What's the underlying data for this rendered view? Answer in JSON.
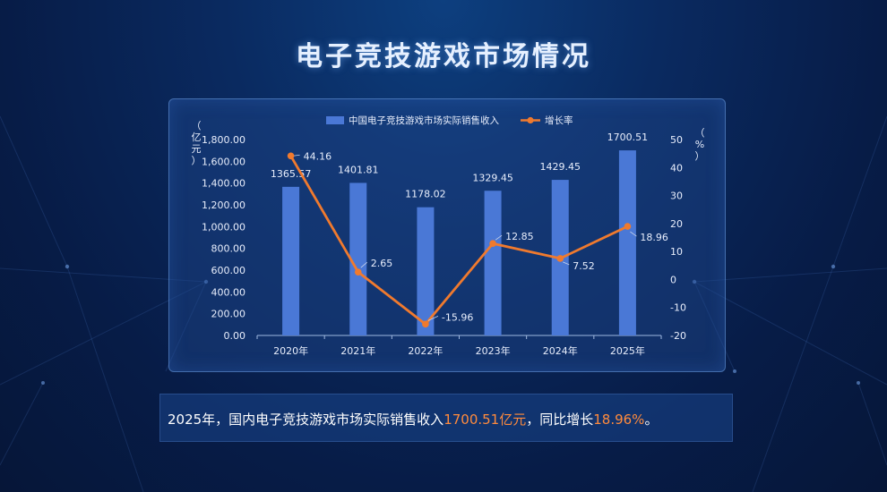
{
  "page": {
    "title": "电子竞技游戏市场情况"
  },
  "summary": {
    "prefix": "2025年，国内电子竞技游戏市场实际销售收入",
    "revenue": "1700.51亿元",
    "middle": "，同比增长",
    "growth": "18.96%",
    "suffix": "。"
  },
  "chart_data": {
    "type": "bar",
    "categories": [
      "2020年",
      "2021年",
      "2022年",
      "2023年",
      "2024年",
      "2025年"
    ],
    "series": [
      {
        "name": "中国电子竞技游戏市场实际销售收入",
        "type": "bar",
        "axis": "left",
        "values": [
          1365.57,
          1401.81,
          1178.02,
          1329.45,
          1429.45,
          1700.51
        ],
        "labels": [
          "1365.57",
          "1401.81",
          "1178.02",
          "1329.45",
          "1429.45",
          "1700.51"
        ],
        "color": "#4a78d6"
      },
      {
        "name": "增长率",
        "type": "line",
        "axis": "right",
        "values": [
          44.16,
          2.65,
          -15.96,
          12.85,
          7.52,
          18.96
        ],
        "labels": [
          "44.16",
          "2.65",
          "-15.96",
          "12.85",
          "7.52",
          "18.96"
        ],
        "color": "#f07a2e"
      }
    ],
    "ylabel_left": "（亿元）",
    "ylabel_right": "（%）",
    "ylim_left": [
      0,
      1800
    ],
    "yticks_left": [
      "0.00",
      "200.00",
      "400.00",
      "600.00",
      "800.00",
      "1,000.00",
      "1,200.00",
      "1,400.00",
      "1,600.00",
      "1,800.00"
    ],
    "ylim_right": [
      -20,
      50
    ],
    "yticks_right": [
      "-20",
      "-10",
      "0",
      "10",
      "20",
      "30",
      "40",
      "50"
    ],
    "legend_position": "top-center",
    "grid": false
  }
}
